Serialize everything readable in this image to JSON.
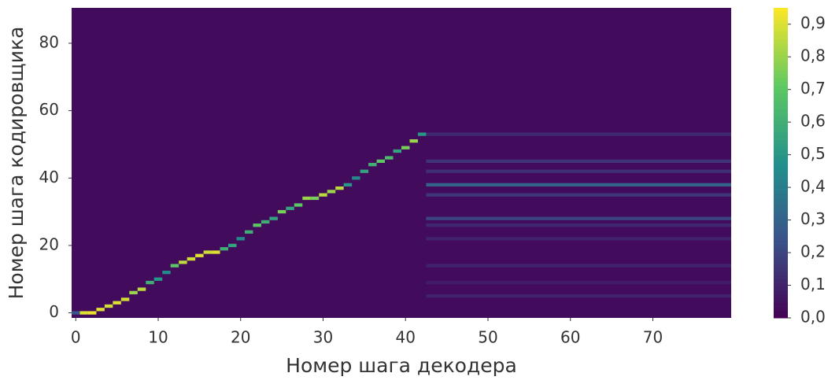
{
  "chart_data": {
    "type": "heatmap",
    "xlabel": "Номер шага декодера",
    "ylabel": "Номер шага кодировщика",
    "colormap": "viridis",
    "fill_value": 0.03,
    "xlim": [
      -0.5,
      79.5
    ],
    "xticks": [
      0,
      10,
      20,
      30,
      40,
      50,
      60,
      70
    ],
    "ylim": [
      -1.5,
      90.5
    ],
    "yticks": [
      0,
      20,
      40,
      60,
      80
    ],
    "clim": [
      0,
      0.95
    ],
    "cticks": [
      {
        "value": 0,
        "label": "0,0"
      },
      {
        "value": 0.1,
        "label": "0,1"
      },
      {
        "value": 0.2,
        "label": "0,2"
      },
      {
        "value": 0.3,
        "label": "0,3"
      },
      {
        "value": 0.4,
        "label": "0,4"
      },
      {
        "value": 0.5,
        "label": "0,5"
      },
      {
        "value": 0.6,
        "label": "0,6"
      },
      {
        "value": 0.7,
        "label": "0,7"
      },
      {
        "value": 0.8,
        "label": "0,8"
      },
      {
        "value": 0.9,
        "label": "0,9"
      }
    ],
    "alignment": {
      "x": [
        0,
        1,
        2,
        3,
        4,
        5,
        6,
        7,
        8,
        9,
        10,
        11,
        12,
        13,
        14,
        15,
        16,
        17,
        18,
        19,
        20,
        21,
        22,
        23,
        24,
        25,
        26,
        27,
        28,
        29,
        30,
        31,
        32,
        33,
        34,
        35,
        36,
        37,
        38,
        39,
        40,
        41,
        42
      ],
      "y": [
        0,
        0,
        0,
        1,
        2,
        3,
        4,
        6,
        7,
        9,
        10,
        12,
        14,
        15,
        16,
        17,
        18,
        18,
        19,
        20,
        22,
        24,
        26,
        27,
        28,
        30,
        31,
        32,
        34,
        34,
        35,
        36,
        37,
        38,
        40,
        42,
        44,
        45,
        46,
        48,
        49,
        51,
        53
      ],
      "values": [
        0.25,
        0.9,
        0.92,
        0.9,
        0.88,
        0.9,
        0.88,
        0.8,
        0.85,
        0.6,
        0.5,
        0.45,
        0.7,
        0.85,
        0.88,
        0.9,
        0.88,
        0.9,
        0.6,
        0.55,
        0.45,
        0.6,
        0.7,
        0.6,
        0.55,
        0.75,
        0.55,
        0.7,
        0.8,
        0.75,
        0.85,
        0.8,
        0.85,
        0.5,
        0.45,
        0.55,
        0.6,
        0.7,
        0.65,
        0.55,
        0.75,
        0.8,
        0.5
      ]
    },
    "streaks": {
      "y": [
        53,
        45,
        42,
        38,
        35,
        28,
        26,
        22,
        14,
        9,
        5
      ],
      "values": [
        0.12,
        0.15,
        0.14,
        0.3,
        0.16,
        0.2,
        0.12,
        0.1,
        0.1,
        0.08,
        0.1
      ]
    }
  }
}
